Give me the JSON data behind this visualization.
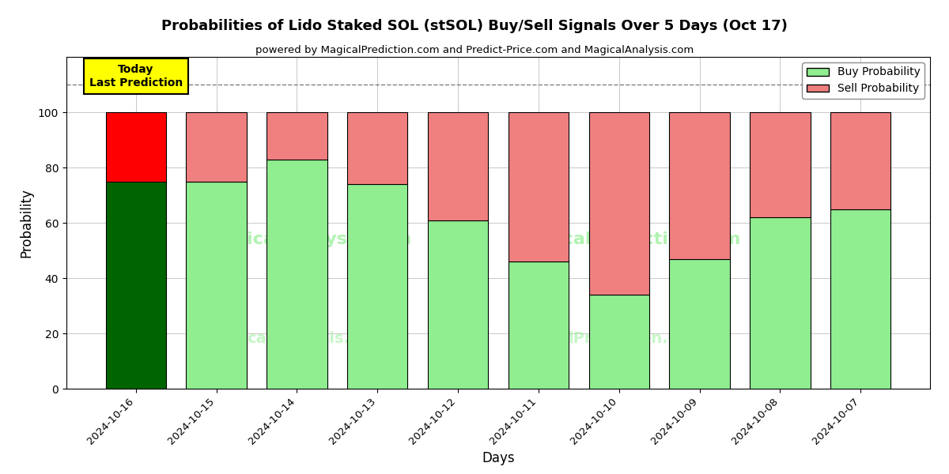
{
  "title": "Probabilities of Lido Staked SOL (stSOL) Buy/Sell Signals Over 5 Days (Oct 17)",
  "subtitle": "powered by MagicalPrediction.com and Predict-Price.com and MagicalAnalysis.com",
  "xlabel": "Days",
  "ylabel": "Probability",
  "dates": [
    "2024-10-16",
    "2024-10-15",
    "2024-10-14",
    "2024-10-13",
    "2024-10-12",
    "2024-10-11",
    "2024-10-10",
    "2024-10-09",
    "2024-10-08",
    "2024-10-07"
  ],
  "buy_values": [
    75,
    75,
    83,
    74,
    61,
    46,
    34,
    47,
    62,
    65
  ],
  "sell_values": [
    25,
    25,
    17,
    26,
    39,
    54,
    66,
    53,
    38,
    35
  ],
  "buy_color_today": "#006400",
  "sell_color_today": "#FF0000",
  "buy_color_normal": "#90EE90",
  "sell_color_normal": "#F08080",
  "today_label_bg": "#FFFF00",
  "today_label_text": "Today\nLast Prediction",
  "bar_edge_color": "#000000",
  "ylim": [
    0,
    120
  ],
  "yticks": [
    0,
    20,
    40,
    60,
    80,
    100
  ],
  "dashed_line_y": 110,
  "legend_buy_label": "Buy Probability",
  "legend_sell_label": "Sell Probability",
  "figsize": [
    12,
    6
  ],
  "dpi": 100
}
